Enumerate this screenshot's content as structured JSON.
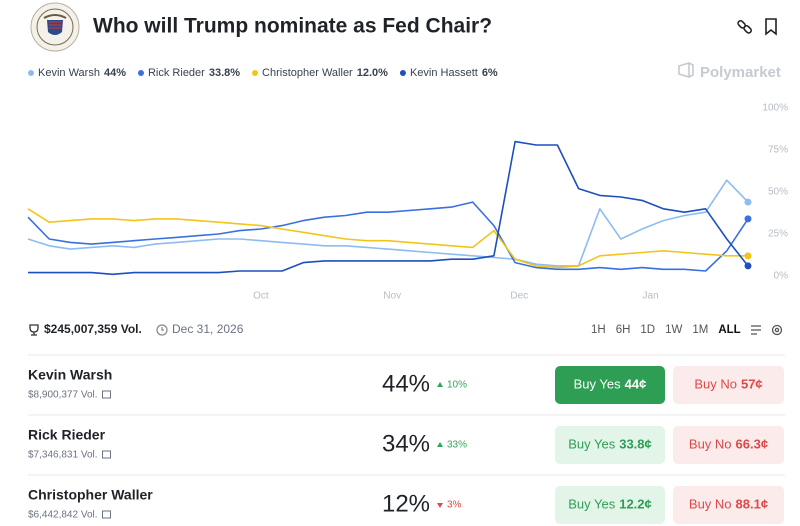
{
  "header": {
    "title": "Who will Trump nominate as Fed Chair?",
    "brand": "Polymarket"
  },
  "chart_data": {
    "type": "line",
    "x": [
      0,
      5,
      10,
      15,
      20,
      25,
      30,
      35,
      40,
      45,
      50,
      55,
      60,
      65,
      70,
      75,
      80,
      85,
      90,
      95,
      100,
      105,
      110,
      115,
      120,
      125,
      130,
      135,
      140,
      145,
      150,
      155,
      160,
      165,
      170
    ],
    "xlim": [
      0,
      170
    ],
    "xticks": [
      {
        "value": 55,
        "label": "Oct"
      },
      {
        "value": 86,
        "label": "Nov"
      },
      {
        "value": 116,
        "label": "Dec"
      },
      {
        "value": 147,
        "label": "Jan"
      }
    ],
    "ylim": [
      0,
      100
    ],
    "yticks": [
      {
        "value": 0,
        "label": "0%"
      },
      {
        "value": 25,
        "label": "25%"
      },
      {
        "value": 50,
        "label": "50%"
      },
      {
        "value": 75,
        "label": "75%"
      },
      {
        "value": 100,
        "label": "100%"
      }
    ],
    "grid": false,
    "series": [
      {
        "name": "Kevin Warsh",
        "legend_value": "44%",
        "color": "#8dbcf2",
        "values": [
          22,
          18,
          16,
          17,
          18,
          17,
          19,
          20,
          21,
          22,
          22,
          21,
          20,
          19,
          18,
          18,
          17,
          16,
          15,
          14,
          13,
          12,
          11,
          10,
          7,
          6,
          6,
          40,
          22,
          28,
          33,
          36,
          38,
          57,
          44
        ]
      },
      {
        "name": "Rick Rieder",
        "legend_value": "33.8%",
        "color": "#3a6fe0",
        "values": [
          35,
          22,
          20,
          19,
          20,
          21,
          22,
          23,
          24,
          25,
          27,
          28,
          30,
          33,
          35,
          36,
          38,
          38,
          39,
          40,
          41,
          44,
          30,
          8,
          5,
          4,
          4,
          5,
          4,
          5,
          4,
          4,
          3,
          15,
          34
        ]
      },
      {
        "name": "Christopher Waller",
        "legend_value": "12.0%",
        "color": "#f2c51a",
        "values": [
          40,
          32,
          33,
          34,
          34,
          33,
          34,
          34,
          33,
          32,
          31,
          30,
          28,
          26,
          24,
          22,
          21,
          21,
          20,
          19,
          18,
          17,
          27,
          10,
          6,
          5,
          6,
          12,
          13,
          14,
          15,
          14,
          13,
          12,
          12
        ]
      },
      {
        "name": "Kevin Hassett",
        "legend_value": "6%",
        "color": "#1d4fbf",
        "values": [
          2,
          2,
          2,
          2,
          1,
          2,
          2,
          2,
          2,
          2,
          3,
          3,
          3,
          8,
          9,
          9,
          9,
          9,
          9,
          9,
          10,
          10,
          12,
          80,
          78,
          78,
          52,
          48,
          47,
          45,
          40,
          38,
          40,
          22,
          6
        ]
      }
    ]
  },
  "stats": {
    "volume": "$245,007,359 Vol.",
    "end_date": "Dec 31, 2026"
  },
  "ranges": [
    "1H",
    "6H",
    "1D",
    "1W",
    "1M",
    "ALL"
  ],
  "markets": [
    {
      "name": "Kevin Warsh",
      "volume": "$8,900,377 Vol.",
      "chance": "44%",
      "change": "10%",
      "change_dir": "up",
      "yes_label": "Buy Yes",
      "yes_price": "44¢",
      "no_label": "Buy No",
      "no_price": "57¢"
    },
    {
      "name": "Rick Rieder",
      "volume": "$7,346,831 Vol.",
      "chance": "34%",
      "change": "33%",
      "change_dir": "up",
      "yes_label": "Buy Yes",
      "yes_price": "33.8¢",
      "no_label": "Buy No",
      "no_price": "66.3¢"
    },
    {
      "name": "Christopher Waller",
      "volume": "$6,442,842 Vol.",
      "chance": "12%",
      "change": "3%",
      "change_dir": "down",
      "yes_label": "Buy Yes",
      "yes_price": "12.2¢",
      "no_label": "Buy No",
      "no_price": "88.1¢"
    }
  ]
}
